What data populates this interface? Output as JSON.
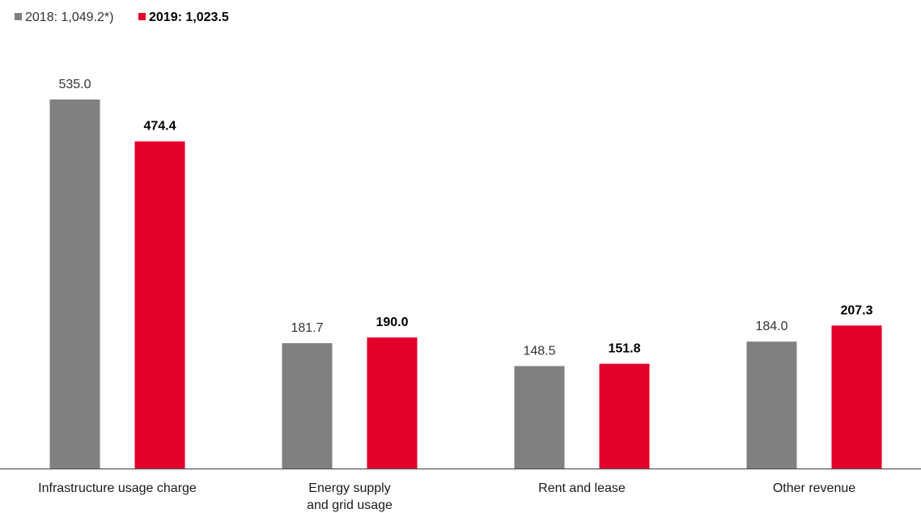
{
  "legend": {
    "prev_label": "2018: 1,049.2*)",
    "cur_label": "2019: 1,023.5"
  },
  "colors": {
    "prev": "#808080",
    "cur": "#e2002a",
    "axis": "#555555"
  },
  "chart_data": {
    "type": "bar",
    "categories": [
      [
        "Infrastructure usage charge"
      ],
      [
        "Energy supply",
        "and grid usage"
      ],
      [
        "Rent and lease"
      ],
      [
        "Other revenue"
      ]
    ],
    "series": [
      {
        "name": "2018: 1,049.2*)",
        "values": [
          535.0,
          181.7,
          148.5,
          184.0
        ],
        "labels": [
          "535.0",
          "181.7",
          "148.5",
          "184.0"
        ]
      },
      {
        "name": "2019: 1,023.5",
        "values": [
          474.4,
          190.0,
          151.8,
          207.3
        ],
        "labels": [
          "474.4",
          "190.0",
          "151.8",
          "207.3"
        ]
      }
    ],
    "ylim": [
      0,
      535
    ],
    "grid": false,
    "legend_position": "top-left"
  }
}
